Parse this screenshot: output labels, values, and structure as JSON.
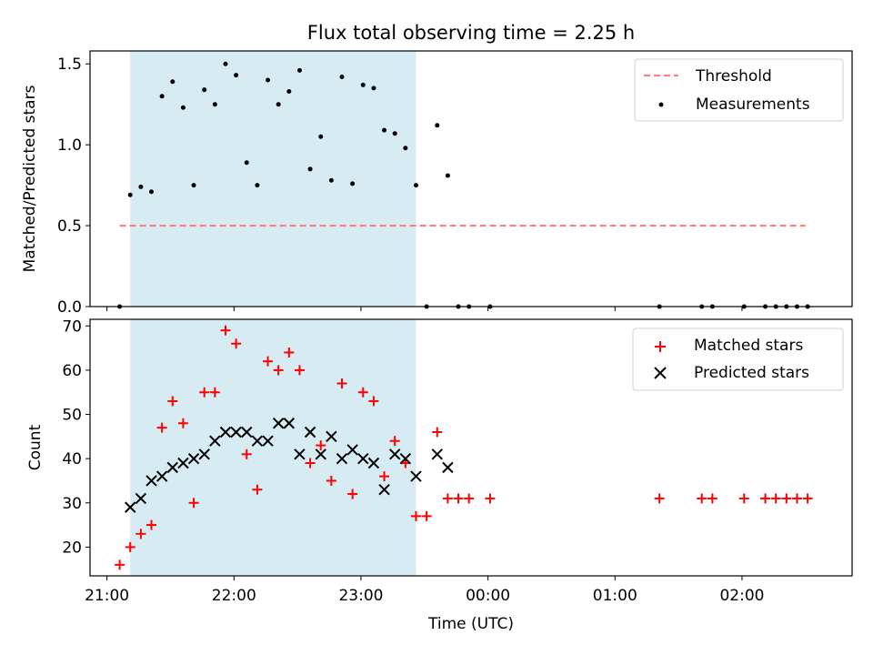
{
  "colors": {
    "shade": "#add8e6",
    "threshold": "#ff7f7f",
    "measurement": "#000000",
    "matched": "#ff0000",
    "predicted": "#000000"
  },
  "chart_data": [
    {
      "type": "scatter",
      "title": "Flux total observing time = 2.25 h",
      "ylabel": "Matched/Predicted stars",
      "xlabel": "",
      "xlim": [
        "20:52",
        "02:52"
      ],
      "ylim": [
        0,
        1.58
      ],
      "xticks": [
        "21:00",
        "22:00",
        "23:00",
        "00:00",
        "01:00",
        "02:00"
      ],
      "yticks": [
        {
          "v": 0,
          "label": "0.0"
        },
        {
          "v": 0.5,
          "label": "0.5"
        },
        {
          "v": 1.0,
          "label": "1.0"
        },
        {
          "v": 1.5,
          "label": "1.5"
        }
      ],
      "shaded_range": [
        "21:11",
        "23:26"
      ],
      "legend_position": "top-right",
      "threshold": {
        "name": "Threshold",
        "x": [
          "21:06",
          "02:30"
        ],
        "y": 0.5
      },
      "series": [
        {
          "name": "Measurements",
          "marker": "dot",
          "x": [
            "21:06",
            "21:11",
            "21:16",
            "21:21",
            "21:26",
            "21:31",
            "21:36",
            "21:41",
            "21:46",
            "21:51",
            "21:56",
            "22:01",
            "22:06",
            "22:11",
            "22:16",
            "22:21",
            "22:26",
            "22:31",
            "22:36",
            "22:41",
            "22:46",
            "22:51",
            "22:56",
            "23:01",
            "23:06",
            "23:11",
            "23:16",
            "23:21",
            "23:26",
            "23:31",
            "23:36",
            "23:41",
            "23:46",
            "23:51",
            "00:01",
            "01:21",
            "01:41",
            "01:46",
            "02:01",
            "02:11",
            "02:16",
            "02:21",
            "02:26",
            "02:31"
          ],
          "y": [
            0.0,
            0.69,
            0.74,
            0.71,
            1.3,
            1.39,
            1.23,
            0.75,
            1.34,
            1.25,
            1.5,
            1.43,
            0.89,
            0.75,
            1.4,
            1.25,
            1.33,
            1.46,
            0.85,
            1.05,
            0.78,
            1.42,
            0.76,
            1.37,
            1.35,
            1.09,
            1.07,
            0.98,
            0.75,
            0.0,
            1.12,
            0.81,
            0.0,
            0.0,
            0.0,
            0.0,
            0.0,
            0.0,
            0.0,
            0.0,
            0.0,
            0.0,
            0.0,
            0.0
          ]
        }
      ]
    },
    {
      "type": "scatter",
      "title": "",
      "xlabel": "Time (UTC)",
      "ylabel": "Count",
      "xlim": [
        "20:52",
        "02:52"
      ],
      "ylim": [
        13.5,
        71.5
      ],
      "xticks": [
        "21:00",
        "22:00",
        "23:00",
        "00:00",
        "01:00",
        "02:00"
      ],
      "yticks": [
        {
          "v": 20,
          "label": "20"
        },
        {
          "v": 30,
          "label": "30"
        },
        {
          "v": 40,
          "label": "40"
        },
        {
          "v": 50,
          "label": "50"
        },
        {
          "v": 60,
          "label": "60"
        },
        {
          "v": 70,
          "label": "70"
        }
      ],
      "shaded_range": [
        "21:11",
        "23:26"
      ],
      "legend_position": "top-right",
      "series": [
        {
          "name": "Matched stars",
          "marker": "plus",
          "x": [
            "21:06",
            "21:11",
            "21:16",
            "21:21",
            "21:26",
            "21:31",
            "21:36",
            "21:41",
            "21:46",
            "21:51",
            "21:56",
            "22:01",
            "22:06",
            "22:11",
            "22:16",
            "22:21",
            "22:26",
            "22:31",
            "22:36",
            "22:41",
            "22:46",
            "22:51",
            "22:56",
            "23:01",
            "23:06",
            "23:11",
            "23:16",
            "23:21",
            "23:26",
            "23:31",
            "23:36",
            "23:41",
            "23:46",
            "23:51",
            "00:01",
            "01:21",
            "01:41",
            "01:46",
            "02:01",
            "02:11",
            "02:16",
            "02:21",
            "02:26",
            "02:31"
          ],
          "y": [
            16,
            20,
            23,
            25,
            47,
            53,
            48,
            30,
            55,
            55,
            69,
            66,
            41,
            33,
            62,
            60,
            64,
            60,
            39,
            43,
            35,
            57,
            32,
            55,
            53,
            36,
            44,
            39,
            27,
            27,
            46,
            31,
            31,
            31,
            31,
            31,
            31,
            31,
            31,
            31,
            31,
            31,
            31,
            31
          ]
        },
        {
          "name": "Predicted stars",
          "marker": "x",
          "x": [
            "21:11",
            "21:16",
            "21:21",
            "21:26",
            "21:31",
            "21:36",
            "21:41",
            "21:46",
            "21:51",
            "21:56",
            "22:01",
            "22:06",
            "22:11",
            "22:16",
            "22:21",
            "22:26",
            "22:31",
            "22:36",
            "22:41",
            "22:46",
            "22:51",
            "22:56",
            "23:01",
            "23:06",
            "23:11",
            "23:16",
            "23:21",
            "23:26",
            "23:36",
            "23:41"
          ],
          "y": [
            29,
            31,
            35,
            36,
            38,
            39,
            40,
            41,
            44,
            46,
            46,
            46,
            44,
            44,
            48,
            48,
            41,
            46,
            41,
            45,
            40,
            42,
            40,
            39,
            33,
            41,
            40,
            36,
            41,
            38
          ]
        }
      ]
    }
  ]
}
